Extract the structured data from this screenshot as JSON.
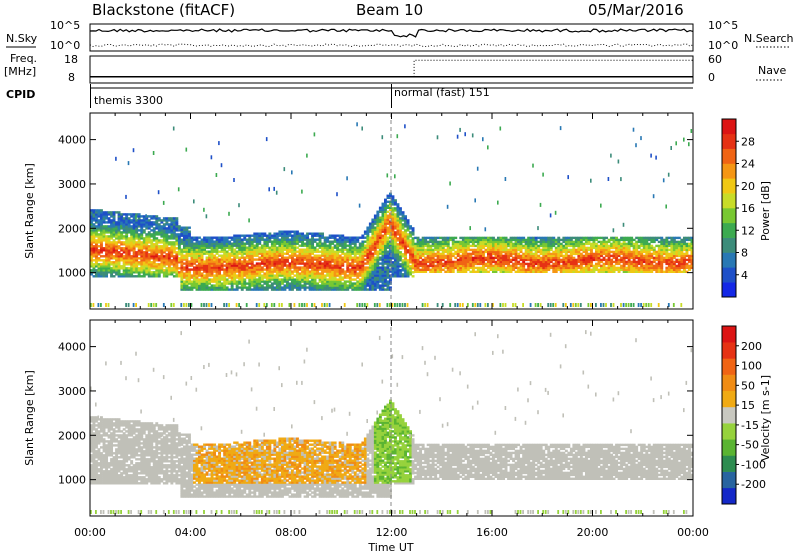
{
  "header": {
    "station": "Blackstone (fitACF)",
    "beam": "Beam 10",
    "date": "05/Mar/2016"
  },
  "side_labels": {
    "nsky": "N.Sky",
    "freq": "Freq.",
    "freq_unit": "[MHz]",
    "cpid": "CPID",
    "nsearch": "N.Search",
    "nave": "Nave"
  },
  "cpid_segments": [
    {
      "label": "themis 3300",
      "start_hour": 0
    },
    {
      "label": "normal (fast) 151",
      "start_hour": 12.0
    }
  ],
  "chart_data": [
    {
      "type": "line",
      "panel": "noise",
      "y_ticks_left": [
        "10^5",
        "10^0"
      ],
      "y_ticks_right": [
        "10^5",
        "10^0"
      ],
      "series": [
        {
          "name": "N.Sky",
          "style": "solid"
        },
        {
          "name": "N.Search",
          "style": "dotted"
        }
      ]
    },
    {
      "type": "line",
      "panel": "frequency",
      "y_ticks_left": [
        "18",
        "8"
      ],
      "y_ticks_right": [
        "60",
        "0"
      ],
      "x": [
        0,
        12.9,
        12.9,
        24
      ],
      "series": [
        {
          "name": "Freq.",
          "style": "solid",
          "values": [
            10.0,
            10.0,
            10.0,
            10.0
          ]
        },
        {
          "name": "Nave",
          "style": "dotted",
          "values": [
            12,
            12,
            50,
            50
          ]
        }
      ]
    },
    {
      "type": "heatmap",
      "panel": "power",
      "ylabel": "Slant Range [km]",
      "ylim": [
        180,
        4600
      ],
      "y_ticks": [
        1000,
        2000,
        3000,
        4000
      ],
      "colorbar_label": "Power [dB]",
      "colorbar_ticks": [
        4,
        8,
        12,
        16,
        20,
        24,
        28
      ],
      "colorbar_colors": [
        "#1428e6",
        "#1e50c8",
        "#2878b4",
        "#3c8c7a",
        "#3caa50",
        "#78c832",
        "#c8dc28",
        "#f0c814",
        "#f59614",
        "#f06414",
        "#e63214",
        "#dc1414"
      ]
    },
    {
      "type": "heatmap",
      "panel": "velocity",
      "ylabel": "Slant Range [km]",
      "ylim": [
        180,
        4600
      ],
      "y_ticks": [
        1000,
        2000,
        3000,
        4000
      ],
      "colorbar_label": "Velocity [m s-1]",
      "colorbar_ticks": [
        "200",
        "100",
        "50",
        "15",
        "-15",
        "-50",
        "-100",
        "-200"
      ],
      "colorbar_colors": [
        "#1428c8",
        "#2864a0",
        "#2d8c50",
        "#5ab432",
        "#96d23c",
        "#c8c8c0",
        "#f0aa14",
        "#f08c14",
        "#f06414",
        "#e63214",
        "#dc1414"
      ]
    }
  ],
  "time_axis": {
    "xlabel": "Time UT",
    "tick_labels": [
      "00:00",
      "04:00",
      "08:00",
      "12:00",
      "16:00",
      "20:00",
      "00:00"
    ]
  },
  "colors": {
    "ground_scatter": "#c0c0b8"
  }
}
